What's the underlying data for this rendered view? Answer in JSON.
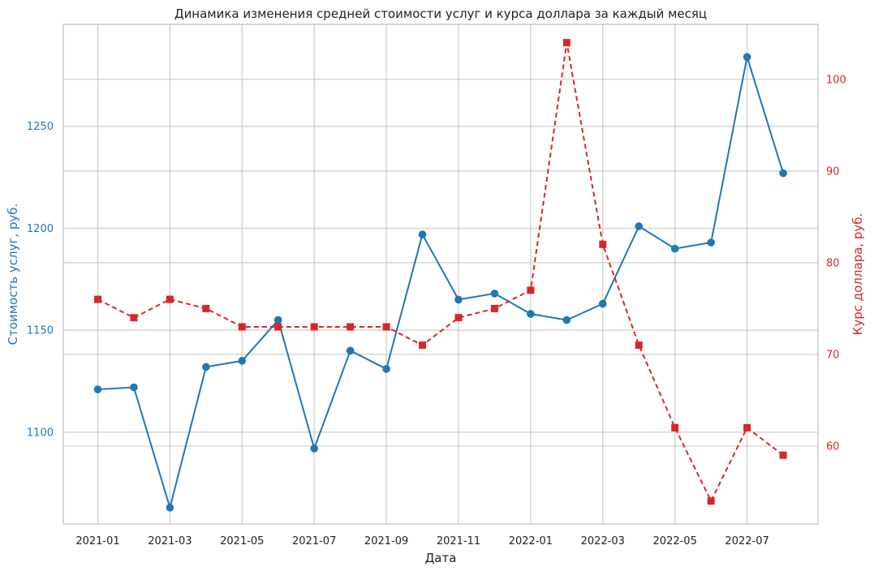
{
  "chart_data": {
    "type": "line",
    "title": "Динамика изменения средней стоимости услуг и курса доллара за каждый месяц",
    "xlabel": "Дата",
    "ylabel_left": "Стоимость услуг, руб.",
    "ylabel_right": "Курс доллара, руб.",
    "x": [
      "2021-01",
      "2021-02",
      "2021-03",
      "2021-04",
      "2021-05",
      "2021-06",
      "2021-07",
      "2021-08",
      "2021-09",
      "2021-10",
      "2021-11",
      "2021-12",
      "2022-01",
      "2022-02",
      "2022-03",
      "2022-04",
      "2022-05",
      "2022-06",
      "2022-07",
      "2022-08"
    ],
    "x_ticks": [
      "2021-01",
      "2021-03",
      "2021-05",
      "2021-07",
      "2021-09",
      "2021-11",
      "2022-01",
      "2022-03",
      "2022-05",
      "2022-07"
    ],
    "y_left_ticks": [
      1100,
      1150,
      1200,
      1250
    ],
    "y_right_ticks": [
      60,
      70,
      80,
      90,
      100
    ],
    "y_left_lim": [
      1055,
      1300
    ],
    "y_right_lim": [
      51.5,
      106.0
    ],
    "grid": true,
    "series": [
      {
        "axis": "left",
        "color": "#1f77b4",
        "style": "solid",
        "marker": "circle",
        "values": [
          1121,
          1122,
          1063,
          1132,
          1135,
          1155,
          1092,
          1140,
          1131,
          1197,
          1165,
          1168,
          1158,
          1155,
          1163,
          1201,
          1190,
          1193,
          1284,
          1227
        ]
      },
      {
        "axis": "right",
        "color": "#d62728",
        "style": "dashed",
        "marker": "square",
        "values": [
          76,
          74,
          76,
          75,
          73,
          73,
          73,
          73,
          73,
          71,
          74,
          75,
          77,
          104,
          82,
          71,
          62,
          54,
          62,
          59
        ]
      }
    ]
  }
}
